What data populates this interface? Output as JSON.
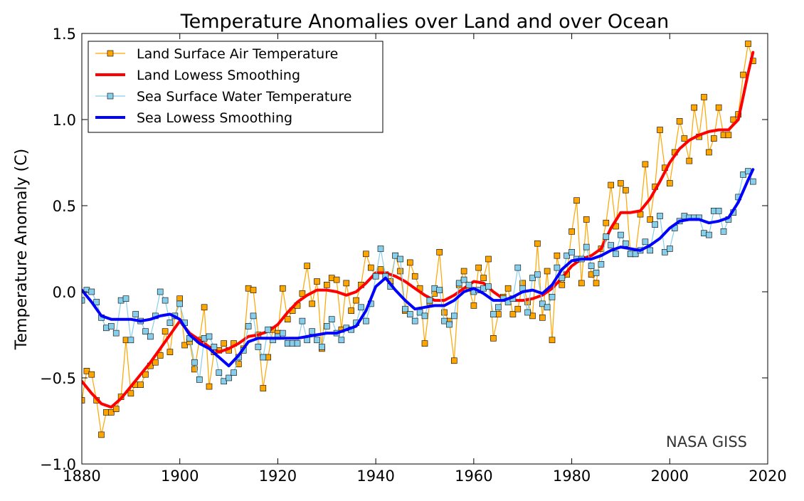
{
  "chart_data": {
    "type": "line",
    "title": "Temperature Anomalies over Land and over Ocean",
    "xlabel": "",
    "ylabel": "Temperature Anomaly (C)",
    "xlim": [
      1880,
      2020
    ],
    "ylim": [
      -1.0,
      1.5
    ],
    "xticks": [
      1880,
      1900,
      1920,
      1940,
      1960,
      1980,
      2000,
      2020
    ],
    "yticks": [
      -1.0,
      -0.5,
      0.0,
      0.5,
      1.0,
      1.5
    ],
    "ytick_labels": [
      "−1.0",
      "−0.5",
      "0.0",
      "0.5",
      "1.0",
      "1.5"
    ],
    "legend_position": "top-left",
    "grid": false,
    "annotation": "NASA GISS",
    "colors": {
      "land": "#ffa500",
      "land_smooth": "#ff0000",
      "sea": "#87ceeb",
      "sea_smooth": "#0000ff"
    },
    "series": [
      {
        "name": "Land Surface Air Temperature",
        "style": "markers",
        "start_year": 1880,
        "values": [
          -0.63,
          -0.46,
          -0.48,
          -0.63,
          -0.83,
          -0.7,
          -0.7,
          -0.68,
          -0.61,
          -0.28,
          -0.59,
          -0.54,
          -0.54,
          -0.48,
          -0.43,
          -0.41,
          -0.37,
          -0.23,
          -0.35,
          -0.14,
          -0.04,
          -0.31,
          -0.29,
          -0.45,
          -0.28,
          -0.09,
          -0.55,
          -0.35,
          -0.34,
          -0.3,
          -0.34,
          -0.3,
          -0.42,
          -0.33,
          0.02,
          0.01,
          -0.25,
          -0.56,
          -0.38,
          -0.22,
          -0.24,
          0.02,
          -0.16,
          -0.11,
          -0.08,
          -0.01,
          0.15,
          -0.07,
          0.06,
          -0.33,
          0.04,
          0.08,
          0.07,
          -0.22,
          0.05,
          -0.11,
          -0.05,
          0.04,
          0.22,
          0.14,
          0.09,
          0.13,
          0.1,
          0.06,
          0.21,
          0.12,
          -0.11,
          0.17,
          0.09,
          0.02,
          -0.3,
          -0.06,
          -0.01,
          0.23,
          -0.12,
          -0.17,
          -0.4,
          0.04,
          0.12,
          0.02,
          -0.08,
          0.14,
          0.08,
          0.19,
          -0.27,
          -0.13,
          -0.03,
          0.02,
          -0.13,
          -0.1,
          0.05,
          -0.06,
          -0.14,
          0.28,
          -0.15,
          0.12,
          -0.28,
          0.21,
          0.04,
          0.1,
          0.35,
          0.53,
          0.05,
          0.42,
          0.1,
          0.05,
          0.25,
          0.4,
          0.62,
          0.38,
          0.63,
          0.59,
          0.22,
          0.22,
          0.45,
          0.74,
          0.42,
          0.61,
          0.94,
          0.72,
          0.63,
          0.81,
          0.99,
          0.89,
          0.76,
          1.07,
          0.9,
          1.13,
          0.81,
          0.89,
          1.07,
          0.91,
          0.91,
          1.0,
          1.03,
          1.26,
          1.44,
          1.34
        ]
      },
      {
        "name": "Land Lowess Smoothing",
        "style": "line",
        "x": [
          1880,
          1882,
          1884,
          1886,
          1888,
          1890,
          1892,
          1894,
          1896,
          1898,
          1900,
          1902,
          1904,
          1906,
          1908,
          1910,
          1912,
          1914,
          1916,
          1918,
          1920,
          1922,
          1924,
          1926,
          1928,
          1930,
          1932,
          1934,
          1936,
          1938,
          1940,
          1942,
          1944,
          1946,
          1948,
          1950,
          1952,
          1954,
          1956,
          1958,
          1960,
          1962,
          1964,
          1966,
          1968,
          1970,
          1972,
          1974,
          1976,
          1978,
          1980,
          1982,
          1984,
          1986,
          1988,
          1990,
          1992,
          1994,
          1996,
          1998,
          2000,
          2002,
          2004,
          2006,
          2008,
          2010,
          2012,
          2014,
          2016,
          2017
        ],
        "values": [
          -0.52,
          -0.59,
          -0.65,
          -0.67,
          -0.62,
          -0.55,
          -0.48,
          -0.41,
          -0.33,
          -0.25,
          -0.17,
          -0.24,
          -0.28,
          -0.32,
          -0.35,
          -0.33,
          -0.3,
          -0.26,
          -0.25,
          -0.23,
          -0.19,
          -0.12,
          -0.06,
          -0.02,
          0.01,
          0.01,
          0.0,
          -0.02,
          0.0,
          0.05,
          0.11,
          0.11,
          0.09,
          0.06,
          0.02,
          -0.02,
          -0.05,
          -0.05,
          -0.02,
          0.02,
          0.06,
          0.05,
          0.0,
          -0.04,
          -0.05,
          -0.05,
          -0.04,
          -0.02,
          0.02,
          0.08,
          0.15,
          0.19,
          0.21,
          0.25,
          0.37,
          0.46,
          0.46,
          0.47,
          0.54,
          0.64,
          0.75,
          0.83,
          0.88,
          0.91,
          0.93,
          0.94,
          0.94,
          1.0,
          1.27,
          1.39
        ]
      },
      {
        "name": "Sea Surface Water Temperature",
        "style": "markers",
        "start_year": 1880,
        "values": [
          -0.05,
          0.01,
          0.0,
          -0.06,
          -0.15,
          -0.21,
          -0.2,
          -0.24,
          -0.05,
          -0.04,
          -0.28,
          -0.13,
          -0.17,
          -0.23,
          -0.26,
          -0.14,
          0.0,
          -0.05,
          -0.18,
          -0.14,
          -0.07,
          -0.18,
          -0.27,
          -0.41,
          -0.51,
          -0.27,
          -0.26,
          -0.32,
          -0.47,
          -0.52,
          -0.5,
          -0.47,
          -0.38,
          -0.34,
          -0.2,
          -0.14,
          -0.32,
          -0.38,
          -0.22,
          -0.28,
          -0.26,
          -0.24,
          -0.3,
          -0.3,
          -0.3,
          -0.17,
          -0.28,
          -0.23,
          -0.28,
          -0.32,
          -0.2,
          -0.16,
          -0.24,
          -0.28,
          -0.21,
          -0.22,
          -0.18,
          -0.09,
          -0.17,
          -0.07,
          0.09,
          0.25,
          0.09,
          0.03,
          0.21,
          0.19,
          -0.1,
          -0.13,
          -0.17,
          -0.12,
          -0.14,
          -0.05,
          0.02,
          0.01,
          -0.17,
          -0.19,
          -0.14,
          0.05,
          0.07,
          0.04,
          0.0,
          0.01,
          0.02,
          0.03,
          -0.13,
          -0.09,
          -0.04,
          -0.06,
          -0.04,
          0.14,
          0.02,
          -0.12,
          0.08,
          0.1,
          -0.07,
          -0.09,
          -0.03,
          0.14,
          0.08,
          0.21,
          0.23,
          0.19,
          0.19,
          0.26,
          0.15,
          0.11,
          0.16,
          0.32,
          0.27,
          0.22,
          0.33,
          0.28,
          0.22,
          0.22,
          0.24,
          0.29,
          0.24,
          0.39,
          0.44,
          0.23,
          0.25,
          0.37,
          0.41,
          0.44,
          0.43,
          0.43,
          0.43,
          0.34,
          0.33,
          0.47,
          0.47,
          0.35,
          0.42,
          0.46,
          0.55,
          0.68,
          0.7,
          0.64
        ]
      },
      {
        "name": "Sea Lowess Smoothing",
        "style": "line",
        "x": [
          1880,
          1882,
          1884,
          1886,
          1888,
          1890,
          1892,
          1894,
          1896,
          1898,
          1900,
          1902,
          1904,
          1906,
          1908,
          1910,
          1912,
          1914,
          1916,
          1918,
          1920,
          1922,
          1924,
          1926,
          1928,
          1930,
          1932,
          1934,
          1936,
          1938,
          1940,
          1942,
          1944,
          1946,
          1948,
          1950,
          1952,
          1954,
          1956,
          1958,
          1960,
          1962,
          1964,
          1966,
          1968,
          1970,
          1972,
          1974,
          1976,
          1978,
          1980,
          1982,
          1984,
          1986,
          1988,
          1990,
          1992,
          1994,
          1996,
          1998,
          2000,
          2002,
          2004,
          2006,
          2008,
          2010,
          2012,
          2014,
          2016,
          2017
        ],
        "values": [
          0.01,
          -0.06,
          -0.14,
          -0.16,
          -0.16,
          -0.16,
          -0.17,
          -0.16,
          -0.14,
          -0.13,
          -0.16,
          -0.25,
          -0.3,
          -0.33,
          -0.38,
          -0.43,
          -0.37,
          -0.29,
          -0.27,
          -0.27,
          -0.27,
          -0.27,
          -0.27,
          -0.26,
          -0.25,
          -0.24,
          -0.24,
          -0.22,
          -0.2,
          -0.11,
          0.03,
          0.08,
          0.01,
          -0.05,
          -0.1,
          -0.09,
          -0.08,
          -0.08,
          -0.05,
          0.0,
          0.02,
          -0.01,
          -0.05,
          -0.05,
          -0.03,
          0.0,
          0.01,
          -0.01,
          0.04,
          0.13,
          0.18,
          0.19,
          0.19,
          0.21,
          0.24,
          0.26,
          0.25,
          0.24,
          0.27,
          0.31,
          0.37,
          0.41,
          0.42,
          0.42,
          0.4,
          0.41,
          0.43,
          0.52,
          0.65,
          0.71
        ]
      }
    ]
  }
}
